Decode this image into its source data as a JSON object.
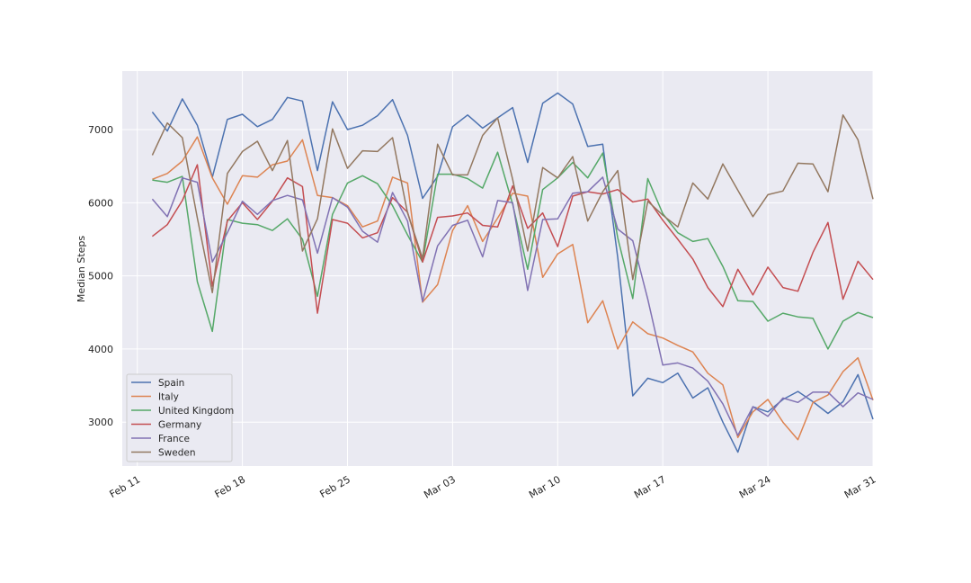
{
  "chart_data": {
    "type": "line",
    "title": "",
    "xlabel": "",
    "ylabel": "Median Steps",
    "x_start": "2020-02-12",
    "x_end": "2020-03-30",
    "xlim": [
      "2020-02-10",
      "2020-03-31"
    ],
    "ylim": [
      2400,
      7800
    ],
    "x_ticks": [
      {
        "date": "2020-02-11",
        "label": "Feb 11"
      },
      {
        "date": "2020-02-18",
        "label": "Feb 18"
      },
      {
        "date": "2020-02-25",
        "label": "Feb 25"
      },
      {
        "date": "2020-03-03",
        "label": "Mar 03"
      },
      {
        "date": "2020-03-10",
        "label": "Mar 10"
      },
      {
        "date": "2020-03-17",
        "label": "Mar 17"
      },
      {
        "date": "2020-03-24",
        "label": "Mar 24"
      },
      {
        "date": "2020-03-31",
        "label": "Mar 31"
      }
    ],
    "y_ticks": [
      {
        "value": 3000,
        "label": "3000"
      },
      {
        "value": 4000,
        "label": "4000"
      },
      {
        "value": 5000,
        "label": "5000"
      },
      {
        "value": 6000,
        "label": "6000"
      },
      {
        "value": 7000,
        "label": "7000"
      }
    ],
    "grid": true,
    "legend_position": "lower-left",
    "series": [
      {
        "name": "Spain",
        "color": "#4c72b0",
        "values": [
          7240,
          6980,
          7420,
          7060,
          6350,
          7140,
          7210,
          7040,
          7140,
          7440,
          7390,
          6440,
          7380,
          7000,
          7060,
          7190,
          7410,
          6920,
          6060,
          6360,
          7040,
          7200,
          7020,
          7160,
          7300,
          6550,
          7360,
          7500,
          7350,
          6770,
          6800,
          5250,
          3360,
          3600,
          3540,
          3670,
          3330,
          3470,
          3000,
          2590,
          3210,
          3140,
          3310,
          3420,
          3280,
          3120,
          3280,
          3650,
          3040
        ]
      },
      {
        "name": "Italy",
        "color": "#dd8452",
        "values": [
          6320,
          6400,
          6570,
          6900,
          6340,
          5980,
          6370,
          6350,
          6520,
          6570,
          6860,
          6100,
          6070,
          5960,
          5670,
          5750,
          6350,
          6270,
          4640,
          4880,
          5620,
          5960,
          5470,
          5790,
          6130,
          6090,
          4980,
          5300,
          5430,
          4360,
          4660,
          4000,
          4370,
          4210,
          4150,
          4050,
          3960,
          3670,
          3510,
          2790,
          3140,
          3310,
          3000,
          2760,
          3270,
          3370,
          3690,
          3880,
          3300
        ]
      },
      {
        "name": "United Kingdom",
        "color": "#55a868",
        "values": [
          6310,
          6280,
          6360,
          4920,
          4240,
          5770,
          5720,
          5700,
          5620,
          5780,
          5500,
          4720,
          5840,
          6270,
          6370,
          6260,
          5960,
          5560,
          5190,
          6390,
          6390,
          6330,
          6200,
          6690,
          5980,
          5090,
          6180,
          6340,
          6550,
          6340,
          6680,
          5520,
          4690,
          6330,
          5850,
          5590,
          5470,
          5510,
          5130,
          4660,
          4650,
          4380,
          4490,
          4440,
          4420,
          4000,
          4380,
          4500,
          4430
        ]
      },
      {
        "name": "Germany",
        "color": "#c44e52",
        "values": [
          5540,
          5700,
          6030,
          6520,
          4860,
          5750,
          6000,
          5770,
          6020,
          6340,
          6220,
          4490,
          5770,
          5720,
          5520,
          5590,
          6070,
          5870,
          5190,
          5800,
          5820,
          5860,
          5690,
          5670,
          6230,
          5650,
          5860,
          5400,
          6090,
          6150,
          6120,
          6180,
          6010,
          6050,
          5760,
          5500,
          5230,
          4840,
          4580,
          5090,
          4740,
          5120,
          4840,
          4790,
          5320,
          5730,
          4680,
          5200,
          4950
        ]
      },
      {
        "name": "France",
        "color": "#8172b3",
        "values": [
          6050,
          5810,
          6340,
          6280,
          5190,
          5590,
          6020,
          5840,
          6030,
          6100,
          6040,
          5310,
          6070,
          5940,
          5610,
          5460,
          6140,
          5750,
          4650,
          5410,
          5690,
          5760,
          5260,
          6030,
          6000,
          4800,
          5770,
          5780,
          6130,
          6150,
          6350,
          5640,
          5480,
          4680,
          3780,
          3810,
          3740,
          3560,
          3250,
          2820,
          3210,
          3080,
          3330,
          3270,
          3410,
          3410,
          3210,
          3400,
          3310
        ]
      },
      {
        "name": "Sweden",
        "color": "#937860",
        "values": [
          6650,
          7090,
          6890,
          5790,
          4770,
          6400,
          6700,
          6840,
          6440,
          6850,
          5340,
          5780,
          7010,
          6470,
          6710,
          6700,
          6890,
          5860,
          5240,
          6800,
          6380,
          6380,
          6920,
          7160,
          6320,
          5340,
          6480,
          6340,
          6630,
          5750,
          6150,
          6440,
          4950,
          6020,
          5830,
          5670,
          6270,
          6050,
          6530,
          6170,
          5810,
          6110,
          6160,
          6540,
          6530,
          6150,
          7200,
          6860,
          6050
        ]
      }
    ]
  }
}
